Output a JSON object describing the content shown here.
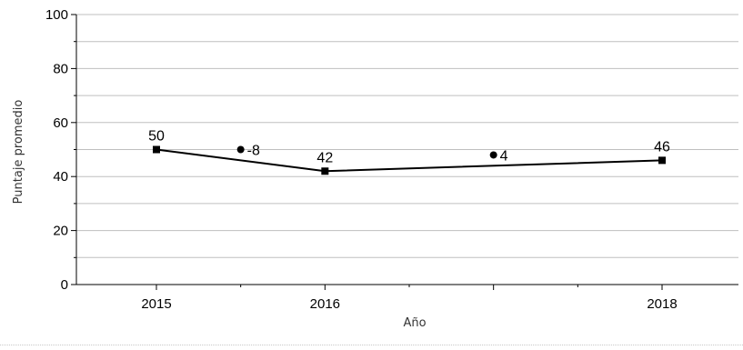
{
  "chart_data": {
    "type": "line",
    "xlabel": "Año",
    "ylabel": "Puntaje promedio",
    "ylim": [
      0,
      100
    ],
    "yticks": [
      "0",
      "20",
      "40",
      "60",
      "80",
      "100"
    ],
    "xlim": [
      2015,
      2018
    ],
    "xticks": [
      "2015",
      "2016",
      "2018"
    ],
    "grid": "horizontal",
    "series": [
      {
        "x": [
          2015,
          2016,
          2018
        ],
        "values": [
          50,
          42,
          46
        ],
        "labels": [
          "50",
          "42",
          "46"
        ],
        "color": "#000000",
        "marker": "square"
      }
    ],
    "change_annotations": [
      {
        "x": 2015.5,
        "y": 50,
        "label": "-8",
        "marker": "circle"
      },
      {
        "x": 2017,
        "y": 48,
        "label": "4",
        "marker": "circle"
      }
    ]
  }
}
